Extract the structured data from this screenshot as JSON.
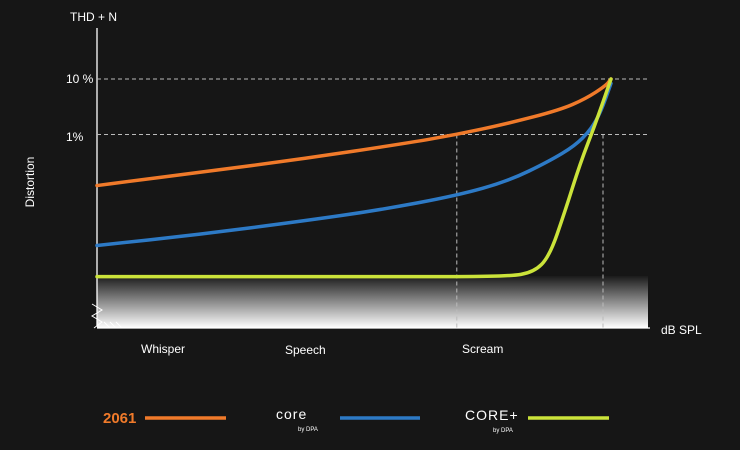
{
  "chart_data": {
    "type": "line",
    "ylabel_top": "THD + N",
    "ylabel_side": "Distortion",
    "xlabel": "dB SPL",
    "y_ticks": [
      "10 %",
      "1%"
    ],
    "x_categories": [
      "Whisper",
      "Speech",
      "Scream"
    ],
    "x_domain": [
      0,
      100
    ],
    "y_domain": [
      0,
      100
    ],
    "y_tick_levels": [
      100,
      75
    ],
    "scream_x": 70,
    "series": [
      {
        "name": "2061",
        "color": "#f07a2a",
        "points": [
          [
            0,
            52
          ],
          [
            5,
            53.5
          ],
          [
            20,
            58
          ],
          [
            40,
            64
          ],
          [
            60,
            71
          ],
          [
            70,
            75
          ],
          [
            80,
            80
          ],
          [
            90,
            86
          ],
          [
            95,
            91
          ],
          [
            99,
            97
          ],
          [
            100,
            100
          ]
        ]
      },
      {
        "name": "core by DPA",
        "color": "#2d7ac6",
        "points": [
          [
            0,
            25
          ],
          [
            20,
            30
          ],
          [
            40,
            36
          ],
          [
            55,
            41
          ],
          [
            70,
            47.5
          ],
          [
            80,
            54
          ],
          [
            88,
            63
          ],
          [
            93,
            70
          ],
          [
            96,
            77
          ],
          [
            98,
            85
          ],
          [
            100,
            98
          ]
        ]
      },
      {
        "name": "CORE+ by DPA",
        "color": "#cbe33a",
        "points": [
          [
            0,
            11
          ],
          [
            30,
            11
          ],
          [
            60,
            11
          ],
          [
            80,
            11
          ],
          [
            85,
            13
          ],
          [
            88,
            20
          ],
          [
            91,
            40
          ],
          [
            94,
            62
          ],
          [
            97,
            80
          ],
          [
            100,
            100
          ]
        ]
      }
    ]
  },
  "legend": {
    "item_2061": "2061",
    "core_word": "core",
    "core_byline": "by DPA",
    "coreplus_word": "CORE+",
    "coreplus_byline": "by DPA"
  }
}
